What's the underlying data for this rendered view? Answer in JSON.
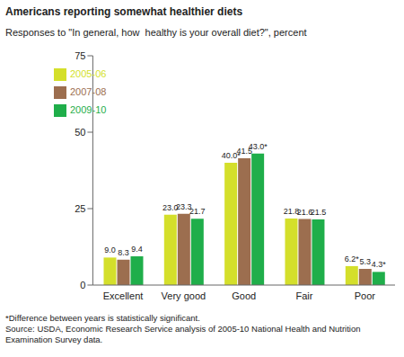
{
  "chart_data": {
    "type": "bar",
    "title": "Americans reporting somewhat healthier diets",
    "subtitle": "Responses to \"In general, how  healthy is your overall diet?\", percent",
    "categories": [
      "Excellent",
      "Very good",
      "Good",
      "Fair",
      "Poor"
    ],
    "series": [
      {
        "name": "2005-06",
        "color": "#d4df2b",
        "values": [
          9.0,
          23.0,
          40.0,
          21.8,
          6.2
        ],
        "value_labels": [
          "9.0",
          "23.0",
          "40.0*",
          "21.8",
          "6.2*"
        ]
      },
      {
        "name": "2007-08",
        "color": "#9c6e4f",
        "values": [
          8.3,
          23.3,
          41.5,
          21.6,
          5.3
        ],
        "value_labels": [
          "8.3",
          "23.3",
          "41.5",
          "21.6",
          "5.3"
        ]
      },
      {
        "name": "2009-10",
        "color": "#1fae4a",
        "values": [
          9.4,
          21.7,
          43.0,
          21.5,
          4.3
        ],
        "value_labels": [
          "9.4",
          "21.7",
          "43.0*",
          "21.5",
          "4.3*"
        ]
      }
    ],
    "ylim": [
      0,
      75
    ],
    "yticks": [
      0,
      25,
      50,
      75
    ],
    "grid": false,
    "legend": "upper left",
    "data_labels": true,
    "annotations": [
      "*Difference between years is statistically significant.",
      "Source: USDA, Economic Research Service analysis of 2005-10 National Health and Nutrition Examination Survey data."
    ]
  }
}
